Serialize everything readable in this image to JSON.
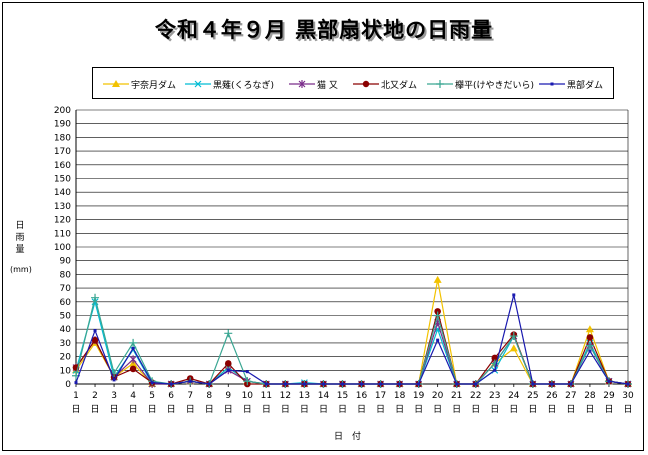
{
  "chart_data": {
    "type": "line",
    "title": "令和４年９月  黒部扇状地の日雨量",
    "xlabel": "日付",
    "ylabel": "日雨量",
    "yunit": "(mm)",
    "x_day_suffix": "日",
    "ylim": [
      0,
      200
    ],
    "yticks": [
      0,
      10,
      20,
      30,
      40,
      50,
      60,
      70,
      80,
      90,
      100,
      110,
      120,
      130,
      140,
      150,
      160,
      170,
      180,
      190,
      200
    ],
    "x": [
      1,
      2,
      3,
      4,
      5,
      6,
      7,
      8,
      9,
      10,
      11,
      12,
      13,
      14,
      15,
      16,
      17,
      18,
      19,
      20,
      21,
      22,
      23,
      24,
      25,
      26,
      27,
      28,
      29,
      30
    ],
    "grid": true,
    "legend_position": "top",
    "series": [
      {
        "name": "宇奈月ダム",
        "color": "#f2c200",
        "marker": "triangle",
        "values": [
          10,
          30,
          5,
          15,
          0,
          0,
          2,
          0,
          12,
          2,
          0,
          0,
          0,
          0,
          0,
          0,
          0,
          0,
          0,
          76,
          0,
          0,
          15,
          26,
          0,
          0,
          0,
          40,
          2,
          0
        ]
      },
      {
        "name": "黒薙(くろなぎ)",
        "color": "#00bcd4",
        "marker": "x",
        "values": [
          10,
          60,
          5,
          25,
          0,
          0,
          2,
          0,
          12,
          2,
          0,
          0,
          1,
          0,
          0,
          0,
          0,
          0,
          0,
          40,
          0,
          0,
          10,
          35,
          0,
          0,
          0,
          30,
          2,
          0
        ]
      },
      {
        "name": "猫  又",
        "color": "#7b2d8b",
        "marker": "star",
        "values": [
          12,
          32,
          5,
          18,
          0,
          0,
          2,
          0,
          10,
          2,
          0,
          0,
          0,
          0,
          0,
          0,
          0,
          0,
          0,
          45,
          0,
          0,
          15,
          35,
          0,
          0,
          0,
          28,
          2,
          0
        ]
      },
      {
        "name": "北又ダム",
        "color": "#8b0000",
        "marker": "circle",
        "values": [
          12,
          32,
          5,
          11,
          1,
          0,
          4,
          0,
          15,
          0,
          0,
          0,
          0,
          0,
          0,
          0,
          0,
          0,
          0,
          53,
          0,
          0,
          19,
          36,
          0,
          0,
          0,
          34,
          2,
          0
        ]
      },
      {
        "name": "欅平(けやきだいら)",
        "color": "#3aa692",
        "marker": "plus",
        "values": [
          6,
          63,
          8,
          30,
          2,
          0,
          2,
          0,
          37,
          2,
          0,
          0,
          0,
          0,
          0,
          0,
          0,
          0,
          0,
          50,
          0,
          0,
          15,
          35,
          0,
          0,
          0,
          28,
          2,
          0
        ]
      },
      {
        "name": "黒部ダム",
        "color": "#1a1ab0",
        "marker": "dot",
        "values": [
          1,
          39,
          3,
          26,
          1,
          0,
          2,
          0,
          10,
          9,
          0,
          0,
          0,
          0,
          0,
          0,
          0,
          0,
          0,
          32,
          0,
          0,
          10,
          65,
          0,
          0,
          0,
          24,
          2,
          0
        ]
      }
    ]
  }
}
